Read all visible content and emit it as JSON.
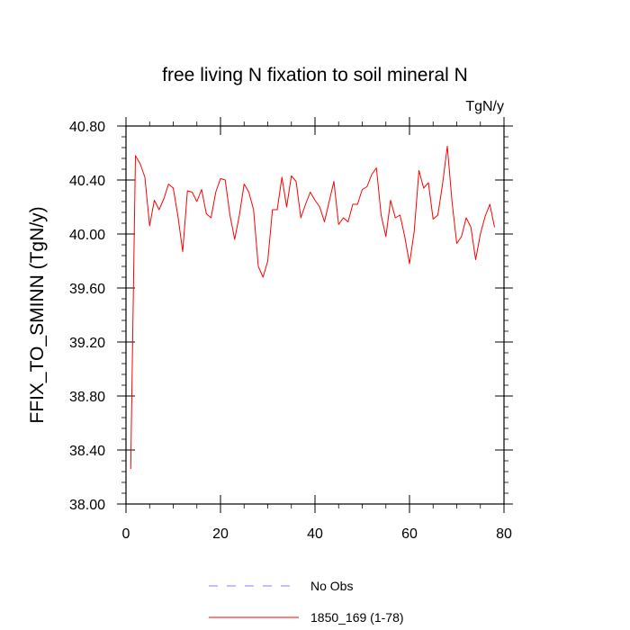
{
  "chart_data": {
    "type": "line",
    "title": "free living N fixation to soil mineral N",
    "units": "TgN/y",
    "xlabel": "",
    "ylabel": "FFIX_TO_SMINN  (TgN/y)",
    "xlim": [
      0,
      80
    ],
    "ylim": [
      38.0,
      40.8
    ],
    "xticks": [
      0,
      20,
      40,
      60,
      80
    ],
    "xtick_labels": [
      "0",
      "20",
      "40",
      "60",
      "80"
    ],
    "yticks": [
      38.0,
      38.4,
      38.8,
      39.2,
      39.6,
      40.0,
      40.4,
      40.8
    ],
    "ytick_labels": [
      "38.00",
      "38.40",
      "38.80",
      "39.20",
      "39.60",
      "40.00",
      "40.40",
      "40.80"
    ],
    "legend": [
      {
        "label": "No Obs",
        "color": "#8080ff",
        "style": "dashed"
      },
      {
        "label": "1850_169 (1-78)",
        "color": "#ff0000",
        "style": "solid"
      }
    ],
    "legend_position": "bottom-center",
    "series": [
      {
        "name": "1850_169 (1-78)",
        "color": "#ff0000",
        "x": [
          1,
          2,
          3,
          4,
          5,
          6,
          7,
          8,
          9,
          10,
          11,
          12,
          13,
          14,
          15,
          16,
          17,
          18,
          19,
          20,
          21,
          22,
          23,
          24,
          25,
          26,
          27,
          28,
          29,
          30,
          31,
          32,
          33,
          34,
          35,
          36,
          37,
          38,
          39,
          40,
          41,
          42,
          43,
          44,
          45,
          46,
          47,
          48,
          49,
          50,
          51,
          52,
          53,
          54,
          55,
          56,
          57,
          58,
          59,
          60,
          61,
          62,
          63,
          64,
          65,
          66,
          67,
          68,
          69,
          70,
          71,
          72,
          73,
          74,
          75,
          76,
          77,
          78
        ],
        "values": [
          38.26,
          40.58,
          40.52,
          40.42,
          40.06,
          40.25,
          40.18,
          40.26,
          40.37,
          40.34,
          40.13,
          39.87,
          40.32,
          40.31,
          40.24,
          40.33,
          40.15,
          40.12,
          40.31,
          40.41,
          40.4,
          40.14,
          39.96,
          40.14,
          40.37,
          40.31,
          40.18,
          39.76,
          39.68,
          39.8,
          40.18,
          40.18,
          40.42,
          40.2,
          40.43,
          40.39,
          40.12,
          40.22,
          40.31,
          40.25,
          40.2,
          40.09,
          40.24,
          40.39,
          40.07,
          40.12,
          40.09,
          40.22,
          40.22,
          40.33,
          40.35,
          40.44,
          40.49,
          40.14,
          39.98,
          40.25,
          40.12,
          40.14,
          39.98,
          39.78,
          40.02,
          40.47,
          40.34,
          40.38,
          40.11,
          40.14,
          40.37,
          40.65,
          40.24,
          39.93,
          39.98,
          40.12,
          40.05,
          39.81,
          40.0,
          40.13,
          40.22,
          40.05
        ]
      }
    ]
  }
}
